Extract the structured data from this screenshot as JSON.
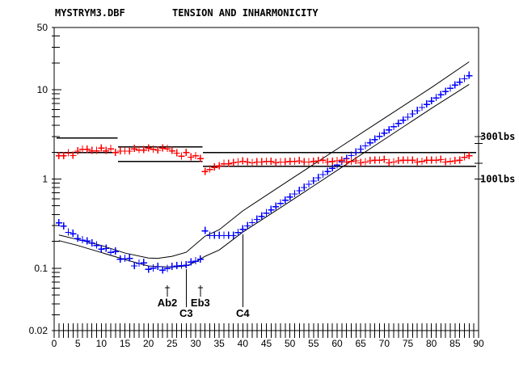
{
  "header": {
    "file": "MYSTRYM3.DBF",
    "title": "TENSION AND INHARMONICITY"
  },
  "colors": {
    "inharmonicity": "#0000ff",
    "tension": "#ff0000",
    "bounds": "#000000"
  },
  "chart_data": {
    "type": "scatter",
    "title": "TENSION AND INHARMONICITY",
    "xlabel": "",
    "ylabel": "",
    "xlim": [
      0,
      90
    ],
    "ylim": [
      0.02,
      50
    ],
    "yscale": "log",
    "x_ticks": [
      "0",
      "5",
      "10",
      "15",
      "20",
      "25",
      "30",
      "35",
      "40",
      "45",
      "50",
      "55",
      "60",
      "65",
      "70",
      "75",
      "80",
      "85",
      "90"
    ],
    "y_ticks": [
      "50",
      "10",
      "1",
      "0.1",
      "0.02"
    ],
    "right_axis_ticks": [
      {
        "label": "300lbs",
        "lbs": 300
      },
      {
        "label": "100lbs",
        "lbs": 100
      }
    ],
    "right_axis_minor_lbs": [
      250,
      150
    ],
    "series": [
      {
        "name": "inharmonicity",
        "color": "#0000ff",
        "values": [
          0.322,
          0.296,
          0.252,
          0.244,
          0.215,
          0.206,
          0.201,
          0.191,
          0.18,
          0.164,
          0.166,
          0.151,
          0.154,
          0.126,
          0.128,
          0.129,
          0.106,
          0.113,
          0.115,
          0.097,
          0.1,
          0.104,
          0.095,
          0.099,
          0.104,
          0.106,
          0.107,
          0.108,
          0.117,
          0.12,
          0.126,
          0.262,
          0.232,
          0.232,
          0.232,
          0.232,
          0.232,
          0.232,
          0.251,
          0.273,
          0.298,
          0.324,
          0.352,
          0.382,
          0.415,
          0.451,
          0.49,
          0.532,
          0.578,
          0.628,
          0.681,
          0.74,
          0.804,
          0.873,
          0.948,
          1.03,
          1.12,
          1.21,
          1.32,
          1.43,
          1.56,
          1.69,
          1.83,
          1.99,
          2.16,
          2.35,
          2.55,
          2.77,
          3.01,
          3.27,
          3.55,
          3.86,
          4.19,
          4.55,
          4.94,
          5.36,
          5.82,
          6.33,
          6.87,
          7.46,
          8.1,
          8.8,
          9.55,
          10.4,
          11.3,
          12.2,
          13.3,
          14.4
        ]
      },
      {
        "name": "tension_lbs",
        "color": "#ff0000",
        "values": [
          182,
          182,
          195,
          183,
          205,
          215,
          215,
          207,
          207,
          222,
          207,
          218,
          198,
          205,
          205,
          205,
          218,
          211,
          211,
          222,
          215,
          210,
          222,
          218,
          207,
          195,
          180,
          198,
          176,
          182,
          169,
          121,
          128,
          135,
          140,
          148,
          148,
          152,
          155,
          158,
          155,
          152,
          155,
          155,
          157,
          157,
          152,
          155,
          155,
          157,
          157,
          160,
          155,
          155,
          157,
          160,
          162,
          155,
          157,
          160,
          162,
          155,
          157,
          160,
          152,
          155,
          160,
          162,
          162,
          165,
          152,
          155,
          160,
          162,
          162,
          162,
          155,
          157,
          162,
          162,
          162,
          165,
          155,
          157,
          160,
          162,
          175,
          182
        ]
      }
    ],
    "inharmonicity_bounds": {
      "upper": {
        "keys": [
          1,
          5,
          10,
          15,
          20,
          22,
          25,
          28,
          32,
          35,
          40,
          50,
          60,
          70,
          80,
          88
        ],
        "values": [
          0.236,
          0.21,
          0.18,
          0.148,
          0.13,
          0.129,
          0.136,
          0.151,
          0.229,
          0.27,
          0.44,
          0.98,
          2.17,
          4.8,
          10.6,
          20.6
        ]
      },
      "lower": {
        "keys": [
          1,
          5,
          10,
          15,
          20,
          25,
          28,
          30,
          32,
          35,
          40,
          50,
          60,
          70,
          80,
          88
        ],
        "values": [
          0.204,
          0.18,
          0.15,
          0.125,
          0.106,
          0.103,
          0.106,
          0.118,
          0.136,
          0.16,
          0.254,
          0.56,
          1.25,
          2.78,
          6.2,
          11.5
        ]
      }
    },
    "tension_bounds_lbs": [
      {
        "keys": [
          1,
          13
        ],
        "upper": 288,
        "lower": 198
      },
      {
        "keys": [
          14,
          31
        ],
        "upper": 229,
        "lower": 157
      },
      {
        "keys": [
          32,
          89
        ],
        "upper": 198,
        "lower": 139
      }
    ],
    "annotations": [
      {
        "label": "Ab2",
        "key": 24,
        "style": "short"
      },
      {
        "label": "C3",
        "key": 28,
        "style": "long"
      },
      {
        "label": "Eb3",
        "key": 31,
        "style": "short"
      },
      {
        "label": "C4",
        "key": 40,
        "style": "long"
      }
    ]
  }
}
